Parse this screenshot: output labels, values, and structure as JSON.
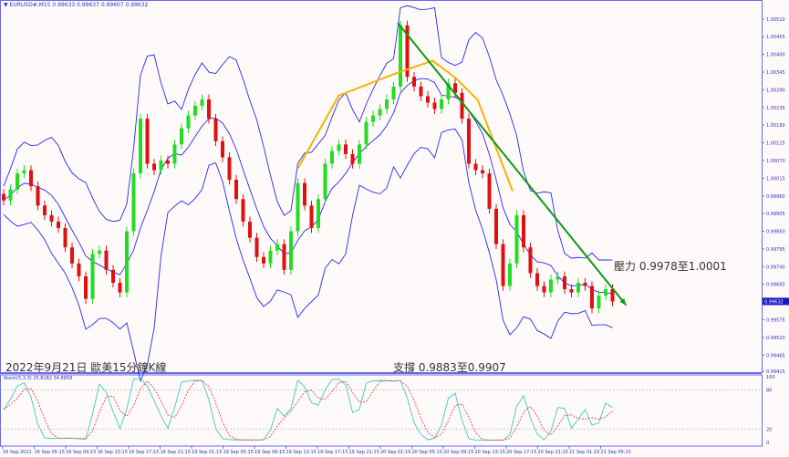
{
  "header": {
    "symbol": "EURUSD#,M15",
    "ohlc": "0.99633 0.99637 0.99607 0.99632"
  },
  "annotations": {
    "date_title": "2022年9月21日 歐美15分鐘K線",
    "support": "支撐 0.9883至0.9907",
    "resistance": "壓力 0.9978至1.0001"
  },
  "stoch": {
    "label": "Stoch(5,3,3) 25.8182 34.8858",
    "levels": [
      "100",
      "80",
      "20",
      "0"
    ]
  },
  "colors": {
    "background": "#fffafa",
    "axis": "#6a6ae8",
    "bull": "#22dd22",
    "bear": "#e01010",
    "bands": "#2828f0",
    "zigzag": "#f5b400",
    "trend": "#109a10",
    "stoch_main": "#40c8c0",
    "stoch_signal": "#e03030",
    "current_price_bg": "#1818c8"
  },
  "chart_data": {
    "type": "candlestick",
    "title": "EURUSD#,M15",
    "ylim": [
      0.99412,
      1.00569
    ],
    "grid": false,
    "price_ticks": [
      "1.00510",
      "1.00455",
      "1.00400",
      "1.00345",
      "1.00290",
      "1.00235",
      "1.00180",
      "1.00125",
      "1.00070",
      "1.00015",
      "0.99960",
      "0.99905",
      "0.99850",
      "0.99795",
      "0.99740",
      "0.99685",
      "0.99575",
      "0.99520",
      "0.99465",
      "0.99415"
    ],
    "current_price": "0.99632",
    "time_labels": [
      "16 Sep 2022",
      "16 Sep 05:15",
      "16 Sep 09:15",
      "16 Sep 13:15",
      "16 Sep 17:15",
      "16 Sep 21:15",
      "19 Sep 01:15",
      "19 Sep 05:15",
      "19 Sep 09:15",
      "19 Sep 13:15",
      "19 Sep 17:15",
      "19 Sep 21:15",
      "20 Sep 01:15",
      "20 Sep 05:15",
      "20 Sep 09:15",
      "20 Sep 13:15",
      "20 Sep 17:15",
      "20 Sep 21:15",
      "21 Sep 01:15",
      "21 Sep 05:15"
    ],
    "closes": [
      0.99946,
      0.9998,
      1.0003,
      1.0004,
      0.9999,
      0.9993,
      0.999,
      0.9988,
      0.9986,
      0.998,
      0.9975,
      0.9971,
      0.9964,
      0.9978,
      0.9979,
      0.9973,
      0.9969,
      0.9966,
      0.9985,
      1.0003,
      1.002,
      1.0006,
      1.0004,
      1.0007,
      1.0006,
      1.0012,
      1.0017,
      1.0021,
      1.0024,
      1.0026,
      1.002,
      1.0013,
      1.0008,
      1.0001,
      0.9995,
      0.9988,
      0.9983,
      0.9977,
      0.9975,
      0.9979,
      0.9981,
      0.9973,
      0.9985,
      1.0,
      0.9993,
      0.9986,
      0.9995,
      1.0006,
      1.001,
      1.0012,
      1.0009,
      1.0006,
      1.0012,
      1.0019,
      1.0021,
      1.0023,
      1.0026,
      1.003,
      1.0049,
      1.0033,
      1.003,
      1.0027,
      1.0025,
      1.0023,
      1.0026,
      1.0031,
      1.0028,
      1.002,
      1.0006,
      1.0004,
      1.0003,
      0.9992,
      0.9981,
      0.9968,
      0.9975,
      0.999,
      0.998,
      0.9972,
      0.9968,
      0.9966,
      0.997,
      0.9971,
      0.9967,
      0.9966,
      0.9969,
      0.9968,
      0.9961,
      0.9965,
      0.9967,
      0.99632
    ],
    "zigzag": [
      {
        "i": 43,
        "p": 1.00045
      },
      {
        "i": 49,
        "p": 1.00272
      },
      {
        "i": 57.6,
        "p": 1.00343
      },
      {
        "i": 62.7,
        "p": 1.0038
      },
      {
        "i": 66,
        "p": 1.00328
      },
      {
        "i": 69.3,
        "p": 1.00258
      },
      {
        "i": 74.4,
        "p": 0.99975
      }
    ],
    "trendline": [
      {
        "i": 57.6,
        "p": 1.00498
      },
      {
        "i": 91,
        "p": 0.9962
      }
    ],
    "stoch_ylim": [
      0,
      100
    ]
  }
}
